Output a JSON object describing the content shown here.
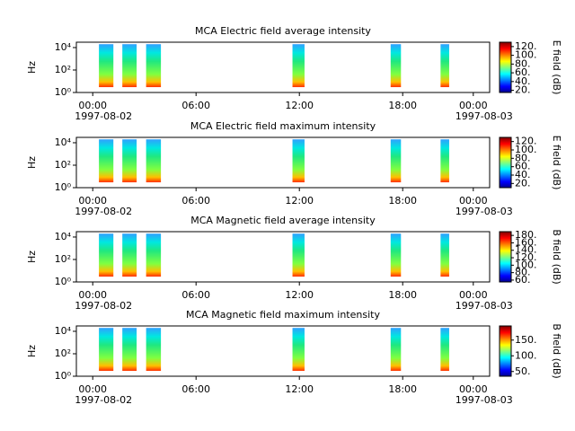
{
  "chart_data": [
    {
      "type": "spectrogram",
      "title": "MCA  Electric field average intensity",
      "ylabel": "Hz",
      "colorbar_label": "E field (dB)",
      "ylog": true,
      "ylim": [
        1,
        30000
      ],
      "yticks": [
        {
          "value": 1,
          "label": "10⁰"
        },
        {
          "value": 100,
          "label": "10²"
        },
        {
          "value": 10000,
          "label": "10⁴"
        }
      ],
      "xlim": [
        -0.95,
        23.05
      ],
      "xticks": [
        {
          "value": 0,
          "label": "00:00"
        },
        {
          "value": 6,
          "label": "06:00"
        },
        {
          "value": 12,
          "label": "12:00"
        },
        {
          "value": 18,
          "label": "18:00"
        },
        {
          "value": 22.1,
          "label": "00:00"
        }
      ],
      "start_date": "1997-08-02",
      "end_date": "1997-08-03",
      "frange": [
        3,
        20000
      ],
      "segments": [
        [
          0.36,
          1.2
        ],
        [
          1.72,
          2.55
        ],
        [
          3.1,
          3.96
        ],
        [
          11.6,
          12.3
        ],
        [
          17.3,
          17.9
        ],
        [
          20.2,
          20.7
        ]
      ],
      "clim": [
        15,
        130
      ],
      "cticks": [
        {
          "value": 20,
          "label": "20."
        },
        {
          "value": 40,
          "label": "40."
        },
        {
          "value": 60,
          "label": "60."
        },
        {
          "value": 80,
          "label": "80."
        },
        {
          "value": 100,
          "label": "100."
        },
        {
          "value": 120,
          "label": "120."
        }
      ]
    },
    {
      "type": "spectrogram",
      "title": "MCA  Electric field maximum intensity",
      "ylabel": "Hz",
      "colorbar_label": "E field (dB)",
      "ylog": true,
      "ylim": [
        1,
        30000
      ],
      "yticks": [
        {
          "value": 1,
          "label": "10⁰"
        },
        {
          "value": 100,
          "label": "10²"
        },
        {
          "value": 10000,
          "label": "10⁴"
        }
      ],
      "xlim": [
        -0.95,
        23.05
      ],
      "xticks": [
        {
          "value": 0,
          "label": "00:00"
        },
        {
          "value": 6,
          "label": "06:00"
        },
        {
          "value": 12,
          "label": "12:00"
        },
        {
          "value": 18,
          "label": "18:00"
        },
        {
          "value": 22.1,
          "label": "00:00"
        }
      ],
      "start_date": "1997-08-02",
      "end_date": "1997-08-03",
      "frange": [
        3,
        20000
      ],
      "segments": [
        [
          0.36,
          1.2
        ],
        [
          1.72,
          2.55
        ],
        [
          3.1,
          3.96
        ],
        [
          11.6,
          12.3
        ],
        [
          17.3,
          17.9
        ],
        [
          20.2,
          20.7
        ]
      ],
      "clim": [
        10,
        130
      ],
      "cticks": [
        {
          "value": 20,
          "label": "20."
        },
        {
          "value": 40,
          "label": "40."
        },
        {
          "value": 60,
          "label": "60."
        },
        {
          "value": 80,
          "label": "80."
        },
        {
          "value": 100,
          "label": "100."
        },
        {
          "value": 120,
          "label": "120."
        }
      ]
    },
    {
      "type": "spectrogram",
      "title": "MCA  Magnetic field average intensity",
      "ylabel": "Hz",
      "colorbar_label": "B field (dB)",
      "ylog": true,
      "ylim": [
        1,
        30000
      ],
      "yticks": [
        {
          "value": 1,
          "label": "10⁰"
        },
        {
          "value": 100,
          "label": "10²"
        },
        {
          "value": 10000,
          "label": "10⁴"
        }
      ],
      "xlim": [
        -0.95,
        23.05
      ],
      "xticks": [
        {
          "value": 0,
          "label": "00:00"
        },
        {
          "value": 6,
          "label": "06:00"
        },
        {
          "value": 12,
          "label": "12:00"
        },
        {
          "value": 18,
          "label": "18:00"
        },
        {
          "value": 22.1,
          "label": "00:00"
        }
      ],
      "start_date": "1997-08-02",
      "end_date": "1997-08-03",
      "frange": [
        3,
        20000
      ],
      "segments": [
        [
          0.36,
          1.2
        ],
        [
          1.72,
          2.55
        ],
        [
          3.1,
          3.96
        ],
        [
          11.6,
          12.3
        ],
        [
          17.3,
          17.9
        ],
        [
          20.2,
          20.7
        ]
      ],
      "clim": [
        55,
        190
      ],
      "cticks": [
        {
          "value": 60,
          "label": "60."
        },
        {
          "value": 80,
          "label": "80."
        },
        {
          "value": 100,
          "label": "100."
        },
        {
          "value": 120,
          "label": "120."
        },
        {
          "value": 140,
          "label": "140."
        },
        {
          "value": 160,
          "label": "160."
        },
        {
          "value": 180,
          "label": "180."
        }
      ]
    },
    {
      "type": "spectrogram",
      "title": "MCA  Magnetic field maximum intensity",
      "ylabel": "Hz",
      "colorbar_label": "B field (dB)",
      "ylog": true,
      "ylim": [
        1,
        30000
      ],
      "yticks": [
        {
          "value": 1,
          "label": "10⁰"
        },
        {
          "value": 100,
          "label": "10²"
        },
        {
          "value": 10000,
          "label": "10⁴"
        }
      ],
      "xlim": [
        -0.95,
        23.05
      ],
      "xticks": [
        {
          "value": 0,
          "label": "00:00"
        },
        {
          "value": 6,
          "label": "06:00"
        },
        {
          "value": 12,
          "label": "12:00"
        },
        {
          "value": 18,
          "label": "18:00"
        },
        {
          "value": 22.1,
          "label": "00:00"
        }
      ],
      "start_date": "1997-08-02",
      "end_date": "1997-08-03",
      "frange": [
        3,
        20000
      ],
      "segments": [
        [
          0.36,
          1.2
        ],
        [
          1.72,
          2.55
        ],
        [
          3.1,
          3.96
        ],
        [
          11.6,
          12.3
        ],
        [
          17.3,
          17.9
        ],
        [
          20.2,
          20.7
        ]
      ],
      "clim": [
        35,
        195
      ],
      "cticks": [
        {
          "value": 50,
          "label": "50."
        },
        {
          "value": 100,
          "label": "100."
        },
        {
          "value": 150,
          "label": "150."
        }
      ]
    }
  ]
}
